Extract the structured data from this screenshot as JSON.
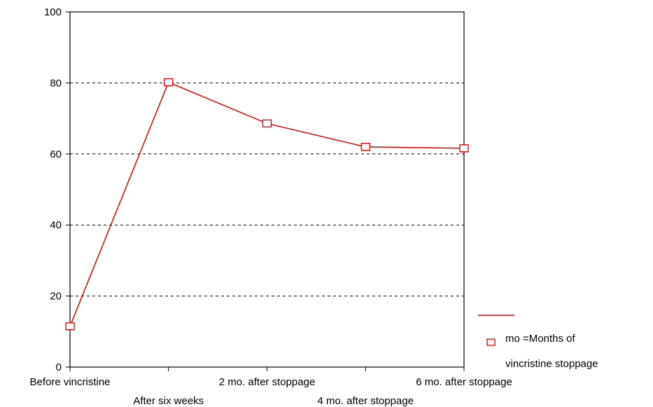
{
  "chart_data": {
    "type": "line",
    "title": "",
    "xlabel": "",
    "ylabel": "",
    "categories": [
      "Before vincristine",
      "After six weeks",
      "2 mo. after stoppage",
      "4 mo. after stoppage",
      "6 mo. after stoppage"
    ],
    "series": [
      {
        "values": [
          11.5,
          80.2,
          68.6,
          62.0,
          61.6
        ]
      }
    ],
    "ylim": [
      0,
      100
    ],
    "yticks": [
      "0",
      "20",
      "40",
      "60",
      "80",
      "100"
    ],
    "grid": "horizontal dashed",
    "legend": {
      "position": "bottom-right",
      "line1": "mo =Months of",
      "line2": "vincristine stoppage"
    },
    "line_color": "#e00000"
  }
}
